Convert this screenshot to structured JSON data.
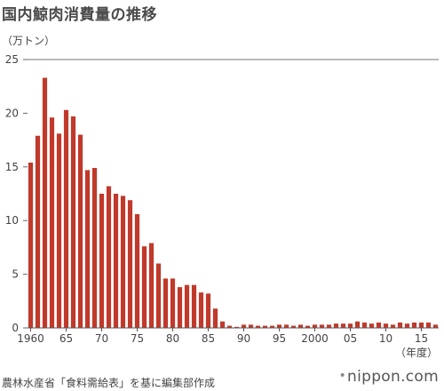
{
  "header": {
    "title": "国内鯨肉消費量の推移"
  },
  "footer": {
    "source": "農林水産省「食料需給表」を基に編集部作成",
    "logo": "nippon.com"
  },
  "chart_data": {
    "type": "bar",
    "title": "国内鯨肉消費量の推移",
    "ylabel": "（万トン）",
    "xlabel": "（年度）",
    "ylim": [
      0,
      25
    ],
    "yticks": [
      0,
      5,
      10,
      15,
      20,
      25
    ],
    "grid": false,
    "color": "#c0392b",
    "xtick_labels": [
      {
        "year": 1960,
        "label": "1960"
      },
      {
        "year": 1965,
        "label": "65"
      },
      {
        "year": 1970,
        "label": "70"
      },
      {
        "year": 1975,
        "label": "75"
      },
      {
        "year": 1980,
        "label": "80"
      },
      {
        "year": 1985,
        "label": "85"
      },
      {
        "year": 1990,
        "label": "90"
      },
      {
        "year": 1995,
        "label": "95"
      },
      {
        "year": 2000,
        "label": "2000"
      },
      {
        "year": 2005,
        "label": "05"
      },
      {
        "year": 2010,
        "label": "10"
      },
      {
        "year": 2015,
        "label": "15"
      }
    ],
    "categories": [
      1960,
      1961,
      1962,
      1963,
      1964,
      1965,
      1966,
      1967,
      1968,
      1969,
      1970,
      1971,
      1972,
      1973,
      1974,
      1975,
      1976,
      1977,
      1978,
      1979,
      1980,
      1981,
      1982,
      1983,
      1984,
      1985,
      1986,
      1987,
      1988,
      1989,
      1990,
      1991,
      1992,
      1993,
      1994,
      1995,
      1996,
      1997,
      1998,
      1999,
      2000,
      2001,
      2002,
      2003,
      2004,
      2005,
      2006,
      2007,
      2008,
      2009,
      2010,
      2011,
      2012,
      2013,
      2014,
      2015,
      2016,
      2017
    ],
    "values": [
      15.4,
      17.9,
      23.3,
      19.6,
      18.1,
      20.3,
      19.7,
      18.0,
      14.7,
      14.9,
      12.5,
      13.2,
      12.5,
      12.3,
      11.9,
      10.6,
      7.6,
      7.9,
      6.0,
      4.6,
      4.6,
      3.8,
      4.0,
      4.0,
      3.3,
      3.2,
      1.8,
      0.6,
      0.2,
      0.1,
      0.3,
      0.3,
      0.2,
      0.2,
      0.2,
      0.3,
      0.3,
      0.2,
      0.3,
      0.2,
      0.3,
      0.3,
      0.3,
      0.4,
      0.4,
      0.4,
      0.6,
      0.5,
      0.4,
      0.5,
      0.4,
      0.3,
      0.5,
      0.4,
      0.5,
      0.5,
      0.5,
      0.3
    ]
  }
}
